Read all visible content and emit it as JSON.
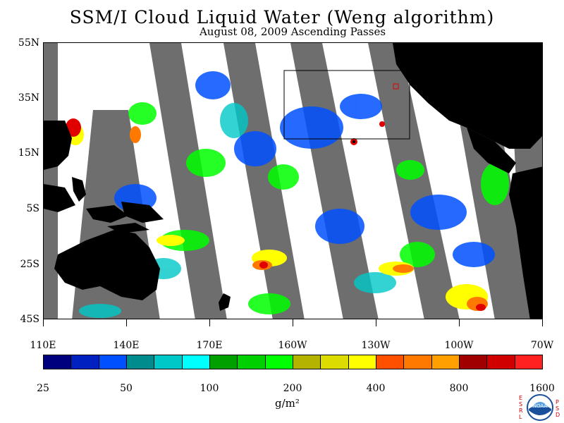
{
  "header": {
    "title": "SSM/I Cloud Liquid Water (Weng algorithm)",
    "subtitle": "August 08, 2009  Ascending Passes"
  },
  "map": {
    "lat_labels": [
      "55N",
      "35N",
      "15N",
      "5S",
      "25S",
      "45S"
    ],
    "lon_labels": [
      "110E",
      "140E",
      "170E",
      "160W",
      "130W",
      "100W",
      "70W"
    ],
    "colors": {
      "land": "#000000",
      "no_data_swath_gap": "#6e6e6e",
      "clear": "#ffffff",
      "box_outline": "#000000",
      "marker": "#e00000"
    }
  },
  "colorbar": {
    "colors": [
      "#00007f",
      "#0020c0",
      "#0050ff",
      "#008c8c",
      "#00c8c8",
      "#00ffff",
      "#00a000",
      "#00d000",
      "#00ff00",
      "#b4b400",
      "#dcdc00",
      "#ffff00",
      "#ff5000",
      "#ff7800",
      "#ffa000",
      "#a00000",
      "#d00000",
      "#ff2020"
    ],
    "tick_labels": [
      "25",
      "50",
      "100",
      "200",
      "400",
      "800",
      "1600"
    ],
    "unit": "g/m²"
  },
  "logo": {
    "left_letters": "ESRL",
    "right_letters": "PSD",
    "name": "NOAA"
  }
}
